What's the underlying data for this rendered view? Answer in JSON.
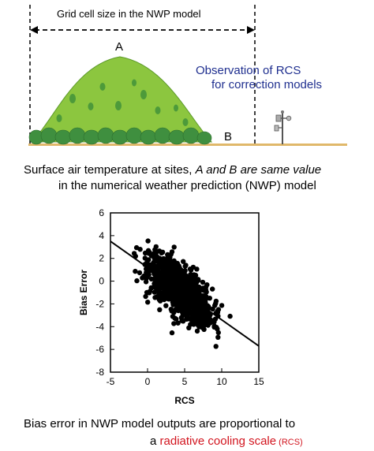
{
  "top": {
    "grid_label": "Grid cell size in the NWP model",
    "label_a": "A",
    "label_b": "B",
    "obs_line1": "Observation of RCS",
    "obs_line2": "for correction models"
  },
  "caption1": {
    "line1_prefix": "Surface air temperature at sites, ",
    "line1_italic": "A and B are same value",
    "line2": "in the numerical weather prediction (NWP) model"
  },
  "caption2": {
    "line1": "Bias error in NWP model outputs are proportional to",
    "line2_prefix": "a ",
    "line2_red": "radiative cooling scale",
    "line2_small": " (RCS)"
  },
  "colors": {
    "mountain": "#8cc63f",
    "forest": "#3f8f3f",
    "ground": "#e0b86a",
    "obs_text": "#1f2f8f",
    "emphasis": "#d2141e"
  },
  "chart_data": {
    "type": "scatter",
    "xlabel": "RCS",
    "ylabel": "Bias Error",
    "xlim": [
      -5,
      15
    ],
    "ylim": [
      -8,
      6
    ],
    "xticks": [
      -5,
      0,
      5,
      10,
      15
    ],
    "yticks": [
      -8,
      -6,
      -4,
      -2,
      0,
      2,
      4,
      6
    ],
    "trend_line": {
      "x": [
        -5,
        15
      ],
      "y": [
        3.5,
        -5.7
      ]
    },
    "points_description_count": 1200,
    "cloud": {
      "x_mean": 4.5,
      "x_sd": 2.8,
      "y_intercept": 1.2,
      "slope": -0.46,
      "y_sd": 1.05,
      "x_min": -2.5,
      "x_max": 13.5
    },
    "grid": false
  }
}
